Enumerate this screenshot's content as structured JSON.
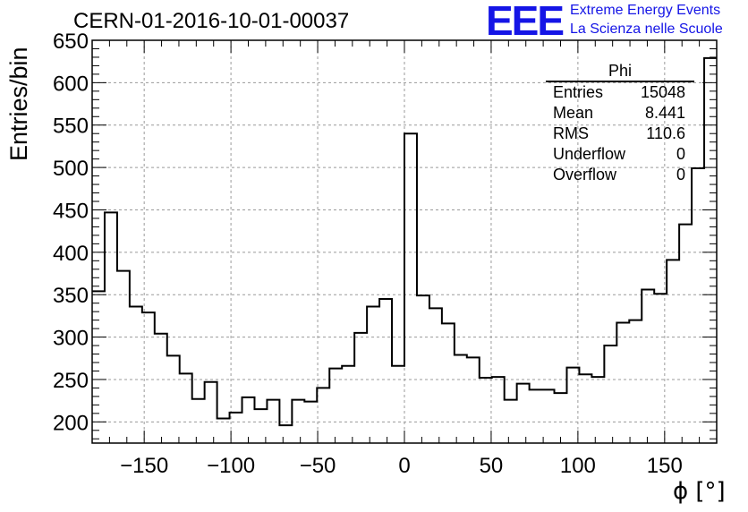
{
  "colors": {
    "logo": "#1515e6",
    "hist": "#000000",
    "grid": "#9a9a9a"
  },
  "title": "CERN-01-2016-10-01-00037",
  "logo": {
    "mark": "EEE",
    "line1": "Extreme Energy Events",
    "line2": "La Scienza nelle Scuole"
  },
  "stats": {
    "name": "Phi",
    "rows": [
      {
        "label": "Entries",
        "value": "15048"
      },
      {
        "label": "Mean",
        "value": "8.441"
      },
      {
        "label": "RMS",
        "value": "110.6"
      },
      {
        "label": "Underflow",
        "value": "0"
      },
      {
        "label": "Overflow",
        "value": "0"
      }
    ]
  },
  "chart_data": {
    "type": "histogram",
    "title": "CERN-01-2016-10-01-00037",
    "xlabel": "ϕ [°]",
    "ylabel": "Entries/bin",
    "xlim": [
      -180,
      180
    ],
    "ylim": [
      175,
      650
    ],
    "grid": true,
    "bin_width": 7.2,
    "bin_edges_start": -180,
    "x_ticks": [
      -150,
      -100,
      -50,
      0,
      50,
      100,
      150
    ],
    "x_tick_labels": [
      "−150",
      "−100",
      "−50",
      "0",
      "50",
      "100",
      "150"
    ],
    "y_ticks": [
      200,
      250,
      300,
      350,
      400,
      450,
      500,
      550,
      600,
      650
    ],
    "y_tick_labels": [
      "200",
      "250",
      "300",
      "350",
      "400",
      "450",
      "500",
      "550",
      "600",
      "650"
    ],
    "values": [
      354,
      447,
      378,
      336,
      329,
      304,
      278,
      257,
      227,
      247,
      204,
      211,
      229,
      215,
      226,
      196,
      226,
      224,
      240,
      263,
      266,
      305,
      336,
      345,
      266,
      540,
      349,
      334,
      316,
      279,
      276,
      252,
      253,
      226,
      245,
      238,
      238,
      234,
      264,
      256,
      253,
      290,
      317,
      320,
      356,
      351,
      391,
      433,
      499,
      629
    ]
  }
}
